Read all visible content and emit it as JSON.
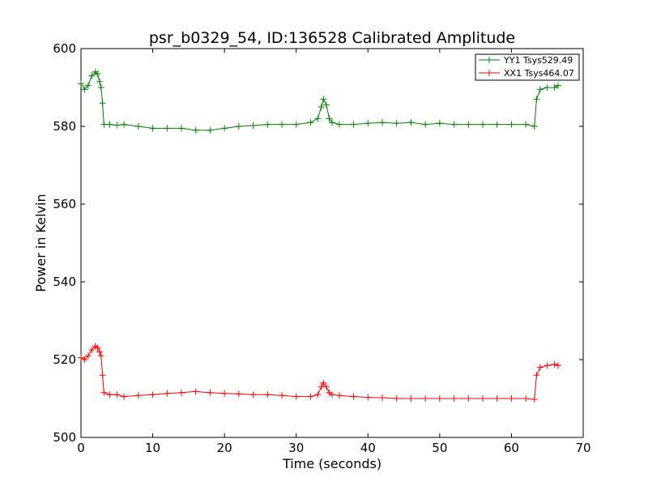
{
  "chart_data": {
    "type": "line",
    "title": "psr_b0329_54, ID:136528 Calibrated Amplitude",
    "xlabel": "Time (seconds)",
    "ylabel": "Power in Kelvin",
    "xlim": [
      0,
      70
    ],
    "ylim": [
      500,
      600
    ],
    "xticks": [
      0,
      10,
      20,
      30,
      40,
      50,
      60,
      70
    ],
    "yticks": [
      500,
      520,
      540,
      560,
      580,
      600
    ],
    "grid": false,
    "legend_position": "top-right",
    "marker": "+",
    "series": [
      {
        "name": "YY1 Tsys529.49",
        "color": "#008000",
        "x": [
          0.0,
          0.5,
          1.0,
          1.5,
          2.0,
          2.3,
          2.6,
          2.8,
          3.0,
          3.2,
          4,
          5,
          6,
          8,
          10,
          12,
          14,
          16,
          18,
          20,
          22,
          24,
          26,
          28,
          30,
          32,
          33.0,
          33.5,
          33.8,
          34.2,
          34.6,
          35,
          36,
          38,
          40,
          42,
          44,
          46,
          48,
          50,
          52,
          54,
          56,
          58,
          60,
          62,
          63.2,
          63.5,
          64,
          65,
          66,
          66.5
        ],
        "values": [
          591,
          589.5,
          590.5,
          593,
          594,
          593.5,
          591.5,
          590,
          586,
          580.5,
          580.5,
          580.3,
          580.5,
          580,
          579.5,
          579.5,
          579.5,
          579,
          579,
          579.5,
          580,
          580.2,
          580.5,
          580.5,
          580.5,
          581,
          582,
          585,
          587,
          585.5,
          582,
          581,
          580.5,
          580.5,
          580.8,
          581,
          580.8,
          581,
          580.5,
          580.8,
          580.5,
          580.5,
          580.5,
          580.5,
          580.5,
          580.5,
          580,
          587,
          589.5,
          590,
          590,
          590.5
        ]
      },
      {
        "name": "XX1 Tsys464.07",
        "color": "#ff0000",
        "x": [
          0.0,
          0.5,
          1.0,
          1.5,
          2.0,
          2.3,
          2.6,
          2.8,
          3.0,
          3.2,
          4,
          5,
          6,
          8,
          10,
          12,
          14,
          16,
          18,
          20,
          22,
          24,
          26,
          28,
          30,
          32,
          33.0,
          33.5,
          33.8,
          34.2,
          34.6,
          35,
          36,
          38,
          40,
          42,
          44,
          46,
          48,
          50,
          52,
          54,
          56,
          58,
          60,
          62,
          63.2,
          63.5,
          64,
          65,
          66,
          66.5
        ],
        "values": [
          520.5,
          520,
          521,
          522.5,
          523.5,
          523,
          522,
          521,
          516,
          511.5,
          511,
          511,
          510.5,
          510.8,
          511,
          511.3,
          511.5,
          511.8,
          511.5,
          511.3,
          511.2,
          511,
          511,
          510.8,
          510.5,
          510.5,
          511,
          513,
          514,
          513,
          511.5,
          511,
          510.8,
          510.5,
          510.3,
          510.2,
          510,
          510,
          510,
          510,
          510,
          510,
          510,
          510,
          510,
          510,
          509.8,
          516,
          518,
          518.5,
          518.8,
          518.5
        ]
      }
    ]
  }
}
